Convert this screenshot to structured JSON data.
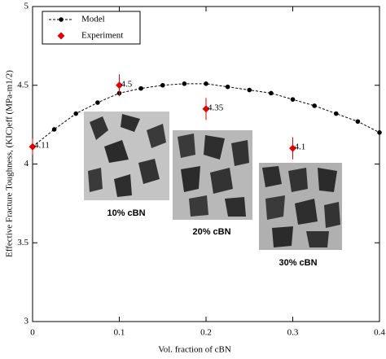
{
  "chart_data": {
    "type": "line",
    "xlabel": "Vol. fraction of cBN",
    "ylabel": "Effective Fracture Toughness, (KIC)eff (MPa-m1/2)",
    "xlim": [
      0,
      0.4
    ],
    "xticks": [
      0,
      0.1,
      0.2,
      0.3,
      0.4
    ],
    "ylim": [
      3,
      5
    ],
    "yticks": [
      3,
      3.5,
      4,
      4.5,
      5
    ],
    "legend": "upper left",
    "series": [
      {
        "name": "Model",
        "color": "#000000",
        "marker": "circle",
        "dashed": true,
        "x": [
          0,
          0.025,
          0.05,
          0.075,
          0.1,
          0.125,
          0.15,
          0.175,
          0.2,
          0.225,
          0.25,
          0.275,
          0.3,
          0.325,
          0.35,
          0.375,
          0.4
        ],
        "values": [
          4.11,
          4.22,
          4.32,
          4.39,
          4.45,
          4.48,
          4.5,
          4.51,
          4.51,
          4.49,
          4.47,
          4.45,
          4.41,
          4.37,
          4.32,
          4.27,
          4.2
        ]
      },
      {
        "name": "Experiment",
        "color": "#e00000",
        "marker": "diamond",
        "line": false,
        "x": [
          0,
          0.1,
          0.2,
          0.3
        ],
        "values": [
          4.11,
          4.5,
          4.35,
          4.1
        ],
        "errors": [
          0.05,
          0.07,
          0.07,
          0.07
        ]
      }
    ],
    "annotations": [
      "10% cBN",
      "20% cBN",
      "30% cBN"
    ]
  }
}
